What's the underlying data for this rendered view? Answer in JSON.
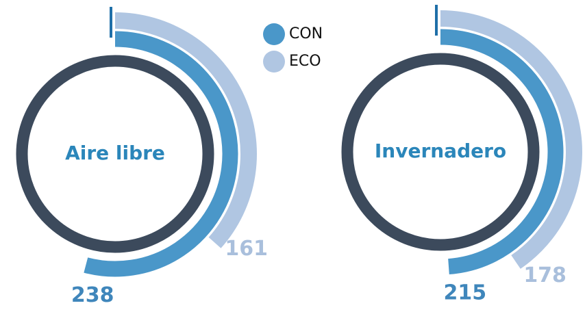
{
  "chart_data": {
    "type": "radial_bar",
    "categories": [
      "Aire libre",
      "Invernadero"
    ],
    "series": [
      {
        "name": "CON",
        "color": "#4a97c9",
        "values": [
          238,
          215
        ]
      },
      {
        "name": "ECO",
        "color": "#b0c6e2",
        "values": [
          161,
          178
        ]
      }
    ],
    "rlim": [
      0,
      440
    ]
  }
}
